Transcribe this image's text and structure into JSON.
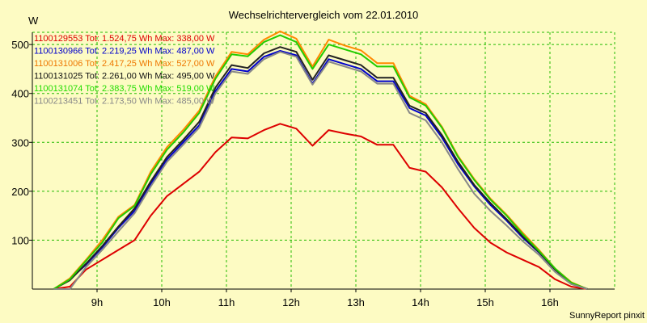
{
  "chart_data": {
    "type": "line",
    "title": "Wechselrichtervergleich vom 22.01.2010",
    "ylabel": "W",
    "xlabel": "",
    "x_ticks": [
      "9h",
      "10h",
      "11h",
      "12h",
      "13h",
      "14h",
      "15h",
      "16h"
    ],
    "x_tick_hours": [
      9,
      10,
      11,
      12,
      13,
      14,
      15,
      16
    ],
    "xlim": [
      8.0,
      17.0
    ],
    "ylim": [
      0,
      525
    ],
    "y_ticks": [
      100,
      200,
      300,
      400,
      500
    ],
    "grid": true,
    "legend_placement": "top-left",
    "x": [
      8.33,
      8.58,
      8.83,
      9.08,
      9.33,
      9.58,
      9.83,
      10.08,
      10.33,
      10.58,
      10.83,
      11.08,
      11.33,
      11.58,
      11.83,
      12.08,
      12.33,
      12.58,
      12.83,
      13.08,
      13.33,
      13.58,
      13.83,
      14.08,
      14.33,
      14.58,
      14.83,
      15.08,
      15.33,
      15.58,
      15.83,
      16.08,
      16.33,
      16.58
    ],
    "series": [
      {
        "name": "1100129553 Tot: 1.524,75 Wh Max: 338,00 W",
        "color": "#dd0000",
        "legend_color": "#dd0000",
        "values": [
          0,
          5,
          40,
          60,
          80,
          100,
          150,
          190,
          215,
          240,
          280,
          310,
          308,
          325,
          338,
          328,
          293,
          325,
          318,
          312,
          295,
          295,
          248,
          240,
          208,
          165,
          125,
          95,
          75,
          60,
          45,
          20,
          5,
          0
        ]
      },
      {
        "name": "1100130966 Tot: 2.219,25 Wh Max: 487,00 W",
        "color": "#0000cc",
        "legend_color": "#0000cc",
        "values": [
          0,
          20,
          50,
          85,
          125,
          160,
          215,
          265,
          300,
          335,
          405,
          450,
          445,
          475,
          487,
          478,
          420,
          470,
          460,
          450,
          425,
          425,
          370,
          355,
          310,
          255,
          210,
          172,
          140,
          105,
          75,
          40,
          12,
          0
        ]
      },
      {
        "name": "1100131006 Tot: 2.417,25 Wh Max: 527,00 W",
        "color": "#ff8800",
        "legend_color": "#ee7700",
        "values": [
          0,
          22,
          60,
          100,
          148,
          172,
          240,
          290,
          325,
          365,
          435,
          485,
          480,
          510,
          527,
          512,
          455,
          510,
          498,
          488,
          462,
          462,
          395,
          378,
          332,
          272,
          225,
          185,
          152,
          115,
          80,
          42,
          14,
          0
        ]
      },
      {
        "name": "1100131025 Tot: 2.261,00 Wh Max: 495,00 W",
        "color": "#222222",
        "legend_color": "#111111",
        "values": [
          0,
          18,
          52,
          88,
          128,
          165,
          220,
          270,
          305,
          342,
          412,
          458,
          452,
          482,
          495,
          485,
          428,
          478,
          468,
          458,
          432,
          432,
          375,
          360,
          315,
          260,
          213,
          176,
          143,
          108,
          76,
          40,
          12,
          0
        ]
      },
      {
        "name": "1100131074 Tot: 2.383,75 Wh Max: 519,00 W",
        "color": "#22cc00",
        "legend_color": "#22dd00",
        "values": [
          0,
          20,
          58,
          95,
          145,
          170,
          235,
          285,
          320,
          360,
          430,
          480,
          476,
          505,
          519,
          505,
          450,
          500,
          490,
          480,
          455,
          455,
          392,
          375,
          330,
          270,
          223,
          183,
          150,
          112,
          78,
          42,
          13,
          0
        ]
      },
      {
        "name": "1100213451 Tot: 2.173,50 Wh Max: 485,00 W",
        "color": "#888888",
        "legend_color": "#888888",
        "values": [
          0,
          0,
          45,
          80,
          118,
          155,
          210,
          260,
          295,
          330,
          400,
          445,
          440,
          470,
          485,
          475,
          418,
          465,
          455,
          445,
          420,
          420,
          360,
          345,
          300,
          245,
          195,
          160,
          130,
          98,
          70,
          35,
          10,
          0
        ]
      }
    ],
    "credit": "SunnyReport pinxit"
  }
}
